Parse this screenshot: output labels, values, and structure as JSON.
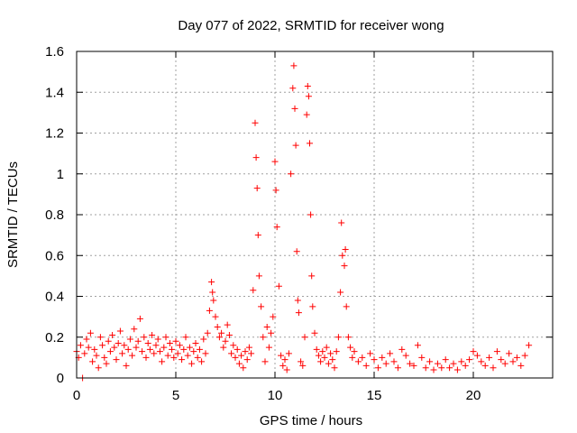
{
  "chart_data": {
    "type": "scatter",
    "title": "Day 077 of 2022, SRMTID for receiver wong",
    "xlabel": "GPS time / hours",
    "ylabel": "SRMTID / TECUs",
    "xlim": [
      0,
      24
    ],
    "ylim": [
      0,
      1.6
    ],
    "xticks": [
      0,
      5,
      10,
      15,
      20
    ],
    "xtick_labels": [
      "0",
      "5",
      "10",
      "15",
      "20"
    ],
    "yticks": [
      0,
      0.2,
      0.4,
      0.6,
      0.8,
      1.0,
      1.2,
      1.4,
      1.6
    ],
    "ytick_labels": [
      "0",
      "0.2",
      "0.4",
      "0.6",
      "0.8",
      "1",
      "1.2",
      "1.4",
      "1.6"
    ],
    "grid": true,
    "marker": "plus",
    "color": "#ff0000",
    "x_data_range": [
      0,
      22.9
    ],
    "series": [
      {
        "name": "SRMTID",
        "points": [
          [
            0.0,
            0.13
          ],
          [
            0.1,
            0.1
          ],
          [
            0.2,
            0.16
          ],
          [
            0.3,
            0.0
          ],
          [
            0.4,
            0.12
          ],
          [
            0.5,
            0.19
          ],
          [
            0.6,
            0.15
          ],
          [
            0.7,
            0.22
          ],
          [
            0.8,
            0.08
          ],
          [
            0.9,
            0.14
          ],
          [
            1.0,
            0.11
          ],
          [
            1.1,
            0.05
          ],
          [
            1.2,
            0.2
          ],
          [
            1.3,
            0.16
          ],
          [
            1.4,
            0.1
          ],
          [
            1.5,
            0.07
          ],
          [
            1.6,
            0.18
          ],
          [
            1.7,
            0.13
          ],
          [
            1.8,
            0.21
          ],
          [
            1.9,
            0.15
          ],
          [
            2.0,
            0.09
          ],
          [
            2.1,
            0.17
          ],
          [
            2.2,
            0.23
          ],
          [
            2.3,
            0.12
          ],
          [
            2.4,
            0.16
          ],
          [
            2.5,
            0.06
          ],
          [
            2.6,
            0.14
          ],
          [
            2.7,
            0.19
          ],
          [
            2.8,
            0.11
          ],
          [
            2.9,
            0.24
          ],
          [
            3.0,
            0.15
          ],
          [
            3.1,
            0.18
          ],
          [
            3.2,
            0.29
          ],
          [
            3.3,
            0.13
          ],
          [
            3.4,
            0.2
          ],
          [
            3.5,
            0.1
          ],
          [
            3.6,
            0.17
          ],
          [
            3.7,
            0.14
          ],
          [
            3.8,
            0.21
          ],
          [
            3.9,
            0.12
          ],
          [
            4.0,
            0.16
          ],
          [
            4.1,
            0.19
          ],
          [
            4.2,
            0.13
          ],
          [
            4.3,
            0.08
          ],
          [
            4.4,
            0.15
          ],
          [
            4.5,
            0.2
          ],
          [
            4.6,
            0.11
          ],
          [
            4.7,
            0.17
          ],
          [
            4.8,
            0.14
          ],
          [
            4.9,
            0.1
          ],
          [
            5.0,
            0.18
          ],
          [
            5.1,
            0.12
          ],
          [
            5.2,
            0.16
          ],
          [
            5.3,
            0.09
          ],
          [
            5.4,
            0.14
          ],
          [
            5.5,
            0.2
          ],
          [
            5.6,
            0.11
          ],
          [
            5.7,
            0.15
          ],
          [
            5.8,
            0.07
          ],
          [
            5.9,
            0.13
          ],
          [
            6.0,
            0.17
          ],
          [
            6.1,
            0.1
          ],
          [
            6.2,
            0.14
          ],
          [
            6.3,
            0.08
          ],
          [
            6.4,
            0.19
          ],
          [
            6.5,
            0.12
          ],
          [
            6.6,
            0.22
          ],
          [
            6.7,
            0.33
          ],
          [
            6.8,
            0.47
          ],
          [
            6.85,
            0.42
          ],
          [
            6.9,
            0.38
          ],
          [
            7.0,
            0.3
          ],
          [
            7.1,
            0.25
          ],
          [
            7.2,
            0.2
          ],
          [
            7.3,
            0.22
          ],
          [
            7.4,
            0.15
          ],
          [
            7.5,
            0.18
          ],
          [
            7.6,
            0.26
          ],
          [
            7.7,
            0.21
          ],
          [
            7.8,
            0.12
          ],
          [
            7.9,
            0.16
          ],
          [
            8.0,
            0.1
          ],
          [
            8.1,
            0.14
          ],
          [
            8.2,
            0.07
          ],
          [
            8.3,
            0.11
          ],
          [
            8.4,
            0.05
          ],
          [
            8.5,
            0.13
          ],
          [
            8.6,
            0.09
          ],
          [
            8.7,
            0.15
          ],
          [
            8.8,
            0.12
          ],
          [
            8.9,
            0.43
          ],
          [
            9.0,
            1.25
          ],
          [
            9.05,
            1.08
          ],
          [
            9.1,
            0.93
          ],
          [
            9.15,
            0.7
          ],
          [
            9.2,
            0.5
          ],
          [
            9.3,
            0.35
          ],
          [
            9.4,
            0.2
          ],
          [
            9.5,
            0.08
          ],
          [
            9.6,
            0.25
          ],
          [
            9.7,
            0.15
          ],
          [
            9.8,
            0.22
          ],
          [
            9.9,
            0.3
          ],
          [
            10.0,
            1.06
          ],
          [
            10.05,
            0.92
          ],
          [
            10.1,
            0.74
          ],
          [
            10.2,
            0.45
          ],
          [
            10.3,
            0.11
          ],
          [
            10.4,
            0.06
          ],
          [
            10.5,
            0.09
          ],
          [
            10.6,
            0.04
          ],
          [
            10.7,
            0.12
          ],
          [
            10.8,
            1.0
          ],
          [
            10.9,
            1.42
          ],
          [
            10.95,
            1.53
          ],
          [
            11.0,
            1.32
          ],
          [
            11.05,
            1.14
          ],
          [
            11.1,
            0.62
          ],
          [
            11.15,
            0.38
          ],
          [
            11.2,
            0.32
          ],
          [
            11.3,
            0.08
          ],
          [
            11.4,
            0.06
          ],
          [
            11.5,
            0.2
          ],
          [
            11.6,
            1.29
          ],
          [
            11.65,
            1.43
          ],
          [
            11.7,
            1.38
          ],
          [
            11.75,
            1.15
          ],
          [
            11.8,
            0.8
          ],
          [
            11.85,
            0.5
          ],
          [
            11.9,
            0.35
          ],
          [
            12.0,
            0.22
          ],
          [
            12.1,
            0.14
          ],
          [
            12.2,
            0.11
          ],
          [
            12.3,
            0.08
          ],
          [
            12.4,
            0.13
          ],
          [
            12.5,
            0.1
          ],
          [
            12.6,
            0.15
          ],
          [
            12.7,
            0.07
          ],
          [
            12.8,
            0.12
          ],
          [
            12.9,
            0.09
          ],
          [
            13.0,
            0.05
          ],
          [
            13.1,
            0.13
          ],
          [
            13.2,
            0.2
          ],
          [
            13.3,
            0.42
          ],
          [
            13.35,
            0.76
          ],
          [
            13.4,
            0.6
          ],
          [
            13.5,
            0.55
          ],
          [
            13.55,
            0.63
          ],
          [
            13.6,
            0.35
          ],
          [
            13.7,
            0.2
          ],
          [
            13.8,
            0.15
          ],
          [
            13.9,
            0.1
          ],
          [
            14.0,
            0.13
          ],
          [
            14.2,
            0.08
          ],
          [
            14.4,
            0.1
          ],
          [
            14.6,
            0.06
          ],
          [
            14.8,
            0.12
          ],
          [
            15.0,
            0.09
          ],
          [
            15.2,
            0.05
          ],
          [
            15.4,
            0.1
          ],
          [
            15.6,
            0.07
          ],
          [
            15.8,
            0.12
          ],
          [
            16.0,
            0.08
          ],
          [
            16.2,
            0.05
          ],
          [
            16.4,
            0.14
          ],
          [
            16.6,
            0.11
          ],
          [
            16.8,
            0.07
          ],
          [
            17.0,
            0.06
          ],
          [
            17.2,
            0.16
          ],
          [
            17.4,
            0.1
          ],
          [
            17.6,
            0.05
          ],
          [
            17.8,
            0.08
          ],
          [
            18.0,
            0.04
          ],
          [
            18.2,
            0.07
          ],
          [
            18.4,
            0.05
          ],
          [
            18.6,
            0.09
          ],
          [
            18.8,
            0.05
          ],
          [
            19.0,
            0.07
          ],
          [
            19.2,
            0.04
          ],
          [
            19.4,
            0.08
          ],
          [
            19.6,
            0.06
          ],
          [
            19.8,
            0.09
          ],
          [
            20.0,
            0.13
          ],
          [
            20.2,
            0.11
          ],
          [
            20.4,
            0.08
          ],
          [
            20.6,
            0.06
          ],
          [
            20.8,
            0.1
          ],
          [
            21.0,
            0.05
          ],
          [
            21.2,
            0.13
          ],
          [
            21.4,
            0.09
          ],
          [
            21.6,
            0.07
          ],
          [
            21.8,
            0.12
          ],
          [
            22.0,
            0.08
          ],
          [
            22.2,
            0.1
          ],
          [
            22.4,
            0.06
          ],
          [
            22.6,
            0.11
          ],
          [
            22.8,
            0.16
          ]
        ]
      }
    ]
  }
}
